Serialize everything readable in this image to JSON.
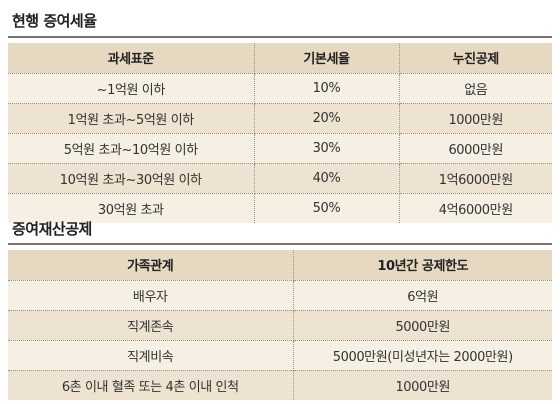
{
  "tax_section": {
    "title": "현행 증여세율",
    "headers": [
      "과세표준",
      "기본세율",
      "누진공제"
    ],
    "rows": [
      [
        "~1억원 이하",
        "10%",
        "없음"
      ],
      [
        "1억원 초과~5억원 이하",
        "20%",
        "1000만원"
      ],
      [
        "5억원 초과~10억원 이하",
        "30%",
        "6000만원"
      ],
      [
        "10억원 초과~30억원 이하",
        "40%",
        "1억6000만원"
      ],
      [
        "30억원 초과",
        "50%",
        "4억6000만원"
      ]
    ]
  },
  "deduction_section": {
    "title": "증여재산공제",
    "headers": [
      "가족관계",
      "10년간 공제한도"
    ],
    "rows": [
      [
        "배우자",
        "6억원"
      ],
      [
        "직계존속",
        "5000만원"
      ],
      [
        "직계비속",
        "5000만원(미성년자는 2000만원)"
      ],
      [
        "6촌 이내 혈족 또는 4촌 이내 인척",
        "1000만원"
      ]
    ]
  },
  "colors": {
    "header_bg": "#e7d8c1",
    "row_light": "#f6efe3",
    "row_dark": "#ede3d0",
    "rule": "#7a7268"
  }
}
